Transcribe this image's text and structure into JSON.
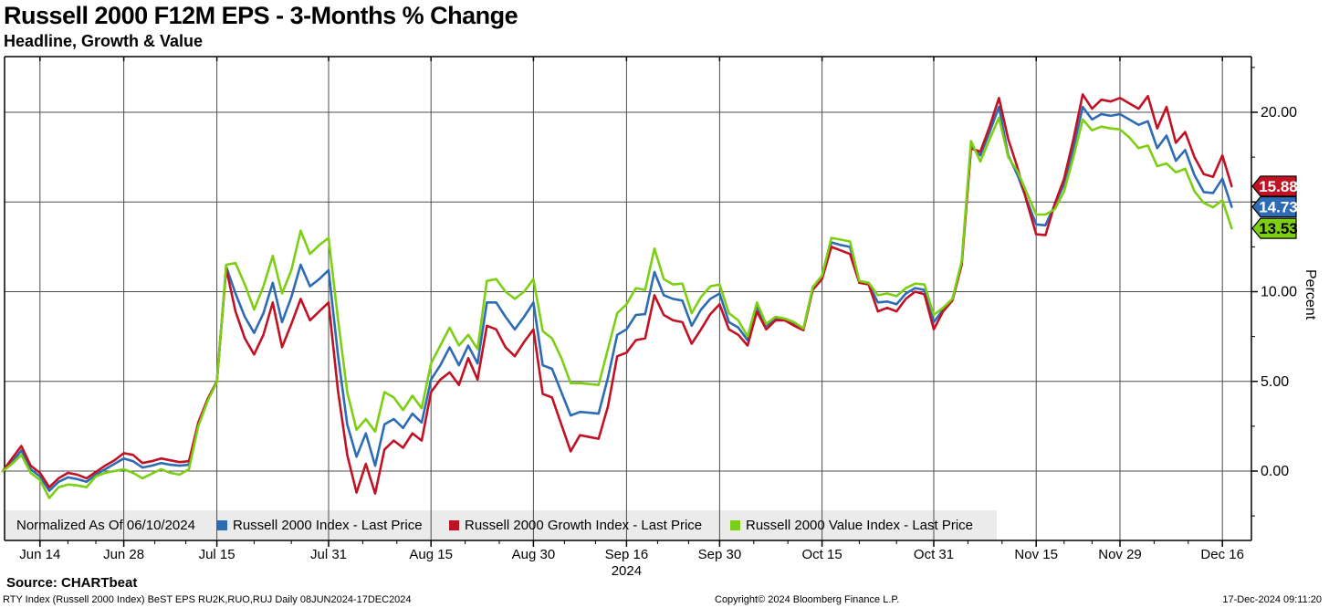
{
  "header": {
    "title": "Russell 2000 F12M EPS - 3-Months % Change",
    "subtitle": "Headline, Growth & Value"
  },
  "legend": {
    "items": [
      {
        "label": "Normalized As Of 06/10/2024",
        "swatch": null,
        "x": 13
      },
      {
        "label": "Russell 2000 Index - Last Price",
        "swatch": "#2d6cb4",
        "x": 233
      },
      {
        "label": "Russell 2000 Growth Index - Last Price",
        "swatch": "#c11224",
        "x": 487
      },
      {
        "label": "Russell 2000 Value Index - Last Price",
        "swatch": "#7ccf12",
        "x": 795
      }
    ]
  },
  "footer": {
    "source_label": "Source: CHARTbeat",
    "info_line": "RTY Index (Russell 2000 Index) BeST EPS RU2K,RUO,RUJ  Daily 08JUN2024-17DEC2024",
    "copyright": "Copyright© 2024 Bloomberg Finance L.P.",
    "timestamp": "17-Dec-2024 09:11:20"
  },
  "chart_data": {
    "type": "line",
    "title": "Russell 2000 F12M EPS - 3-Months % Change",
    "subtitle": "Headline, Growth & Value",
    "ylabel": "Percent",
    "normalized_as_of": "06/10/2024",
    "date_range": "08JUN2024-17DEC2024",
    "x_unit": "trading-day index, day 0 = 06/10/2024",
    "ylim": [
      -3.9,
      23.1
    ],
    "grid": true,
    "legend_position": "bottom-inside",
    "y_gridlines": [
      0,
      5,
      10,
      15,
      20
    ],
    "y_major_ticks": [
      {
        "value": 20,
        "label": "20.00"
      },
      {
        "value": 15,
        "label": "15.00"
      },
      {
        "value": 10,
        "label": "10.00"
      },
      {
        "value": 5,
        "label": "5.00"
      },
      {
        "value": 0,
        "label": "0.00"
      }
    ],
    "y_minor_ticks": [
      22.5,
      17.5,
      12.5,
      7.5,
      2.5,
      -2.5
    ],
    "x_ticks": [
      {
        "label": "Jun 14",
        "day": 4
      },
      {
        "label": "Jun 28",
        "day": 13
      },
      {
        "label": "Jul 15",
        "day": 23
      },
      {
        "label": "Jul 31",
        "day": 35
      },
      {
        "label": "Aug 15",
        "day": 46
      },
      {
        "label": "Aug 30",
        "day": 57
      },
      {
        "label": "Sep 16",
        "day": 67
      },
      {
        "label": "Sep 30",
        "day": 77
      },
      {
        "label": "Oct 15",
        "day": 88
      },
      {
        "label": "Oct 31",
        "day": 100
      },
      {
        "label": "Nov 15",
        "day": 111
      },
      {
        "label": "Nov 29",
        "day": 120
      },
      {
        "label": "Dec 16",
        "day": 131
      }
    ],
    "year_label": "2024",
    "series": [
      {
        "name": "Russell 2000 Index - Last Price",
        "color": "#2d6cb4",
        "last": 14.73,
        "values": [
          0.0,
          0.5,
          1.15,
          0.1,
          -0.3,
          -1.1,
          -0.6,
          -0.35,
          -0.45,
          -0.6,
          -0.2,
          0.1,
          0.4,
          0.7,
          0.55,
          0.2,
          0.3,
          0.45,
          0.35,
          0.3,
          0.35,
          2.6,
          4.0,
          5.0,
          11.4,
          9.9,
          8.6,
          7.7,
          8.8,
          10.5,
          8.3,
          9.7,
          11.5,
          10.3,
          10.7,
          11.2,
          6.5,
          2.6,
          0.8,
          2.1,
          0.3,
          2.6,
          2.9,
          2.4,
          3.2,
          2.7,
          5.1,
          5.9,
          6.9,
          5.9,
          7.0,
          6.0,
          9.4,
          9.4,
          8.6,
          7.9,
          8.6,
          9.4,
          5.9,
          5.7,
          4.4,
          3.1,
          3.3,
          3.25,
          3.2,
          5.2,
          7.6,
          7.9,
          8.7,
          8.75,
          11.1,
          9.8,
          9.6,
          9.5,
          8.1,
          9.0,
          9.6,
          9.9,
          8.3,
          8.0,
          7.3,
          9.2,
          8.1,
          8.5,
          8.45,
          8.2,
          7.9,
          10.2,
          10.8,
          12.75,
          12.6,
          12.5,
          10.55,
          10.45,
          9.4,
          9.45,
          9.3,
          9.9,
          10.2,
          10.1,
          8.3,
          9.0,
          9.55,
          11.6,
          18.1,
          17.6,
          18.9,
          20.3,
          17.6,
          16.5,
          15.1,
          13.75,
          13.7,
          14.85,
          16.0,
          18.0,
          20.3,
          19.6,
          19.9,
          19.8,
          19.9,
          19.6,
          19.3,
          19.5,
          18.0,
          18.7,
          17.3,
          17.9,
          16.5,
          15.55,
          15.5,
          16.3,
          14.73
        ]
      },
      {
        "name": "Russell 2000 Growth Index - Last Price",
        "color": "#c11224",
        "last": 15.88,
        "values": [
          0.0,
          0.7,
          1.4,
          0.3,
          -0.1,
          -0.9,
          -0.4,
          -0.1,
          -0.2,
          -0.4,
          -0.05,
          0.3,
          0.6,
          1.0,
          0.9,
          0.45,
          0.55,
          0.7,
          0.6,
          0.5,
          0.55,
          2.7,
          4.0,
          5.0,
          11.3,
          8.9,
          7.4,
          6.5,
          7.6,
          9.4,
          6.9,
          8.2,
          9.6,
          8.4,
          8.9,
          9.4,
          4.5,
          0.9,
          -1.2,
          0.4,
          -1.25,
          1.2,
          1.7,
          1.3,
          2.1,
          1.7,
          4.4,
          5.1,
          5.5,
          4.8,
          6.3,
          5.1,
          8.1,
          7.9,
          6.9,
          6.4,
          7.2,
          7.9,
          4.3,
          4.1,
          2.6,
          1.1,
          2.0,
          1.9,
          1.8,
          3.6,
          6.4,
          6.6,
          7.3,
          7.4,
          9.8,
          8.7,
          8.4,
          8.3,
          7.1,
          7.9,
          8.75,
          9.3,
          7.9,
          7.6,
          7.0,
          8.9,
          7.9,
          8.4,
          8.4,
          8.1,
          7.85,
          10.1,
          10.7,
          12.5,
          12.3,
          12.1,
          10.5,
          10.4,
          8.9,
          9.1,
          8.9,
          9.6,
          10.0,
          9.85,
          7.9,
          8.9,
          9.5,
          11.5,
          18.0,
          17.8,
          19.2,
          20.8,
          18.5,
          16.9,
          15.0,
          13.2,
          13.15,
          14.9,
          16.3,
          18.5,
          21.0,
          20.2,
          20.7,
          20.6,
          20.8,
          20.5,
          20.2,
          20.9,
          19.1,
          20.3,
          18.3,
          18.9,
          17.5,
          16.55,
          16.4,
          17.6,
          15.88
        ]
      },
      {
        "name": "Russell 2000 Value Index - Last Price",
        "color": "#7ccf12",
        "last": 13.53,
        "values": [
          0.0,
          0.4,
          0.9,
          -0.1,
          -0.5,
          -1.5,
          -0.9,
          -0.75,
          -0.8,
          -0.9,
          -0.3,
          -0.1,
          0.0,
          0.1,
          -0.1,
          -0.4,
          -0.15,
          0.1,
          -0.1,
          -0.2,
          0.1,
          2.5,
          3.9,
          4.95,
          11.5,
          11.6,
          10.4,
          9.0,
          10.3,
          12.0,
          9.9,
          11.2,
          13.4,
          12.1,
          12.6,
          13.0,
          8.5,
          4.4,
          2.3,
          2.9,
          2.2,
          4.4,
          4.1,
          3.4,
          4.2,
          3.5,
          6.0,
          7.0,
          8.0,
          7.0,
          7.6,
          6.8,
          10.6,
          10.7,
          10.0,
          9.6,
          10.0,
          10.7,
          7.8,
          7.4,
          6.3,
          4.9,
          4.9,
          4.85,
          4.8,
          6.8,
          8.8,
          9.3,
          10.2,
          10.1,
          12.4,
          10.7,
          10.4,
          10.45,
          8.8,
          9.7,
          10.3,
          10.4,
          8.8,
          8.4,
          7.5,
          9.4,
          8.2,
          8.6,
          8.5,
          8.3,
          7.95,
          10.25,
          10.9,
          13.0,
          12.9,
          12.8,
          10.6,
          10.5,
          9.8,
          9.9,
          9.75,
          10.2,
          10.45,
          10.4,
          8.7,
          9.1,
          9.6,
          11.7,
          18.4,
          17.25,
          18.5,
          19.7,
          17.5,
          16.7,
          15.5,
          14.3,
          14.3,
          14.6,
          15.6,
          17.5,
          19.6,
          19.0,
          19.2,
          19.1,
          19.05,
          18.6,
          18.0,
          18.15,
          17.0,
          17.15,
          16.65,
          16.85,
          15.6,
          14.95,
          14.7,
          15.1,
          13.53
        ]
      }
    ],
    "value_labels": [
      {
        "text": "15.88",
        "value": 15.88,
        "bg": "#c11224",
        "fg": "#ffffff"
      },
      {
        "text": "14.73",
        "value": 14.73,
        "bg": "#2d6cb4",
        "fg": "#ffffff"
      },
      {
        "text": "13.53",
        "value": 13.53,
        "bg": "#7ccf12",
        "fg": "#000000"
      }
    ]
  }
}
